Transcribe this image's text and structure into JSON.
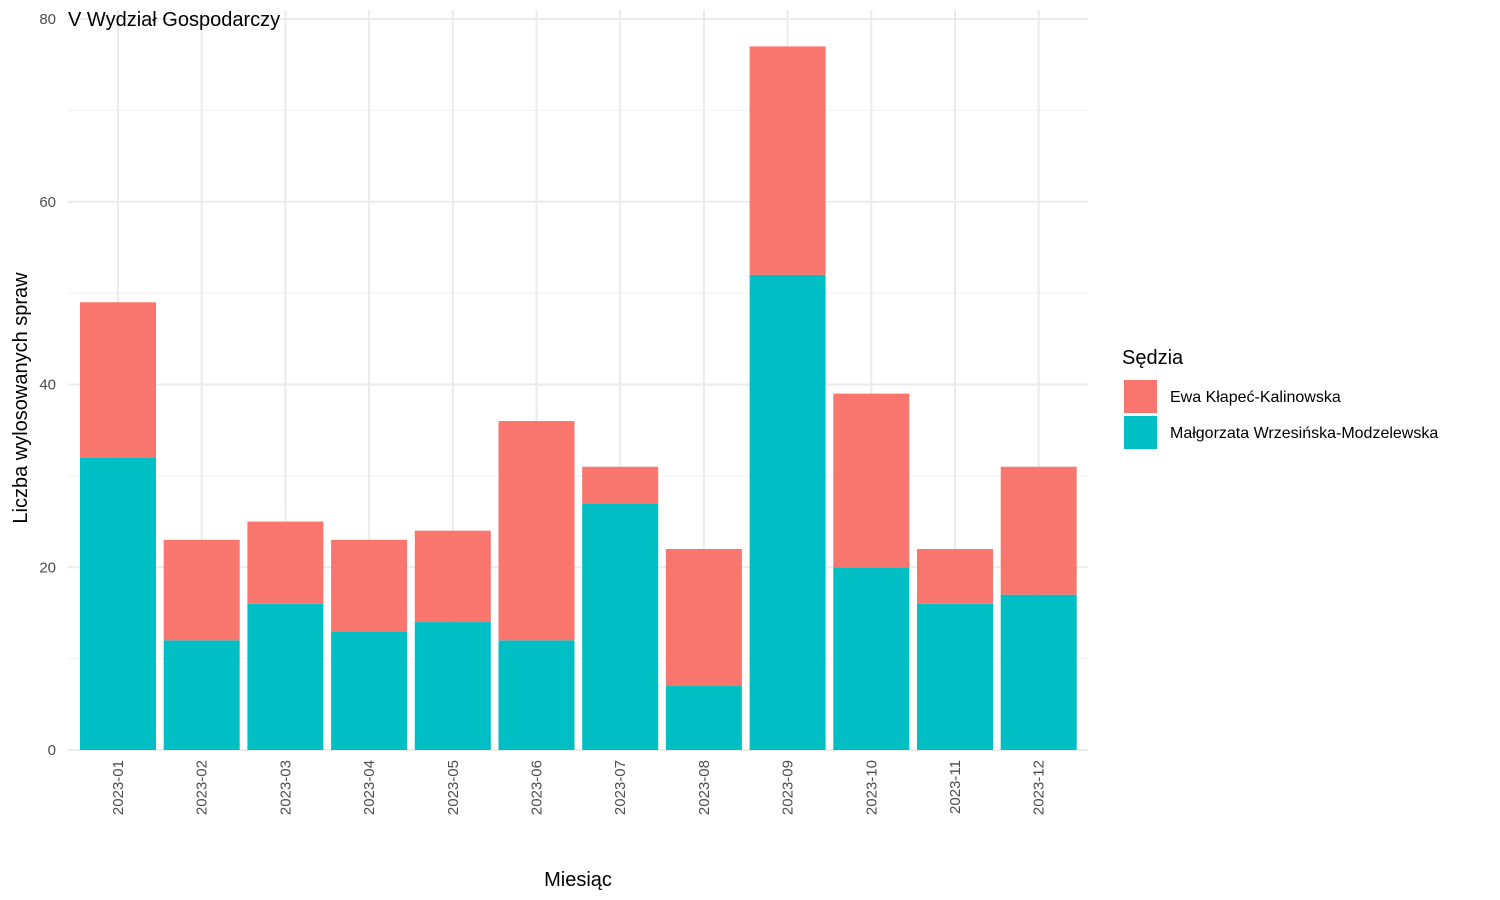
{
  "chart_data": {
    "type": "bar",
    "stacked": true,
    "annotation": "V Wydział Gospodarczy",
    "xlabel": "Miesiąc",
    "ylabel": "Liczba wylosowanych spraw",
    "ylim": [
      0,
      80
    ],
    "yticks": [
      0,
      20,
      40,
      60,
      80
    ],
    "grid": true,
    "legend_position": "right",
    "legend_title": "Sędzia",
    "categories": [
      "2023-01",
      "2023-02",
      "2023-03",
      "2023-04",
      "2023-05",
      "2023-06",
      "2023-07",
      "2023-08",
      "2023-09",
      "2023-10",
      "2023-11",
      "2023-12"
    ],
    "series": [
      {
        "name": "Ewa Kłapeć-Kalinowska",
        "color": "#F8766D",
        "values": [
          17,
          11,
          9,
          10,
          10,
          24,
          4,
          15,
          25,
          19,
          6,
          14
        ]
      },
      {
        "name": "Małgorzata Wrzesińska-Modzelewska",
        "color": "#00BFC4",
        "values": [
          32,
          12,
          16,
          13,
          14,
          12,
          27,
          7,
          52,
          20,
          16,
          17
        ]
      }
    ],
    "stack_order_bottom_to_top": [
      "Małgorzata Wrzesińska-Modzelewska",
      "Ewa Kłapeć-Kalinowska"
    ]
  }
}
